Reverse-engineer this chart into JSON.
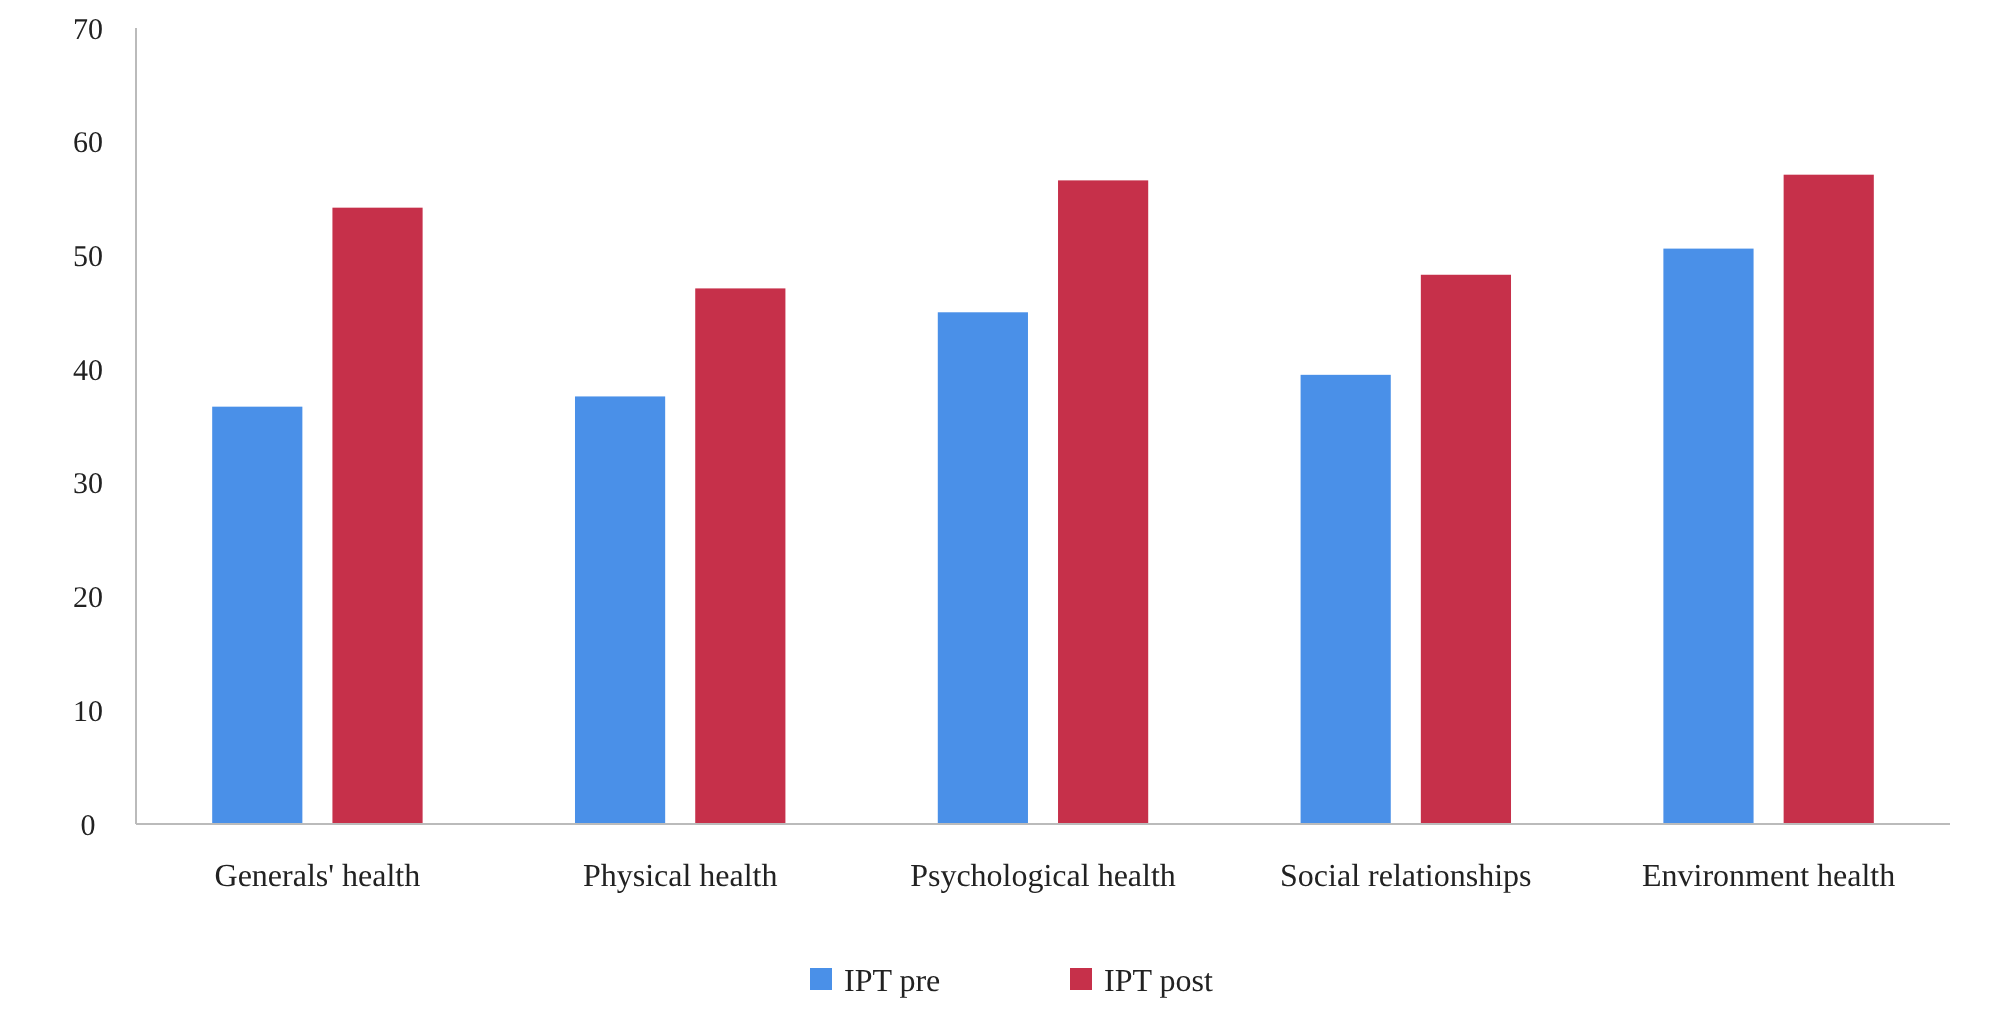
{
  "chart_data": {
    "type": "bar",
    "categories": [
      "Generals' health",
      "Physical health",
      "Psychological health",
      "Social relationships",
      "Environment health"
    ],
    "series": [
      {
        "name": "IPT pre",
        "color": "#4a90e8",
        "values": [
          36.7,
          37.6,
          45,
          39.5,
          50.6
        ]
      },
      {
        "name": "IPT post",
        "color": "#c6304a",
        "values": [
          54.2,
          47.1,
          56.6,
          48.3,
          57.1
        ]
      }
    ],
    "ylim": [
      0,
      70
    ],
    "yticks": [
      0,
      10,
      20,
      30,
      40,
      50,
      60,
      70
    ],
    "grid": false,
    "legend": "bottom"
  }
}
